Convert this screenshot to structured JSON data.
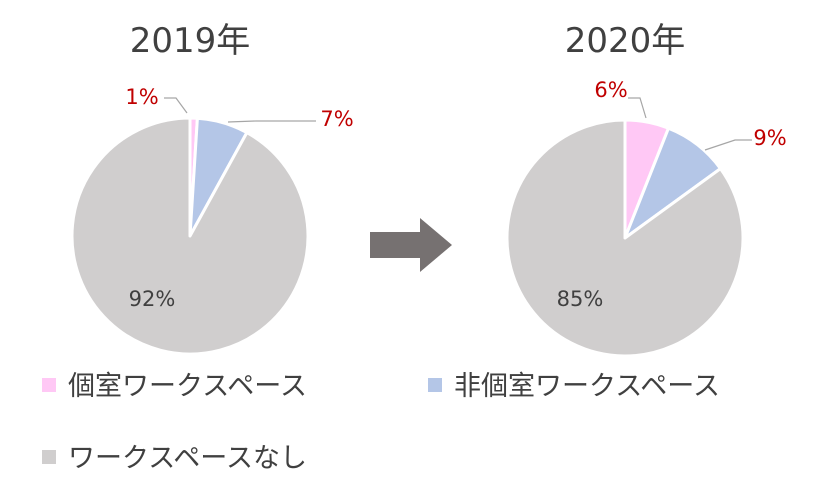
{
  "colors": {
    "private": "#ffc8f5",
    "non_private": "#b4c6e7",
    "none": "#d0cece",
    "label_red": "#c00000",
    "label_dark": "#404040",
    "arrow": "#767171"
  },
  "legend": {
    "items": [
      {
        "label": "個室ワークスペース",
        "color": "#ffc8f5"
      },
      {
        "label": "非個室ワークスペース",
        "color": "#b4c6e7"
      },
      {
        "label": "ワークスペースなし",
        "color": "#d0cece"
      }
    ]
  },
  "chart_data": [
    {
      "type": "pie",
      "title": "2019年",
      "categories": [
        "個室ワークスペース",
        "非個室ワークスペース",
        "ワークスペースなし"
      ],
      "values": [
        1,
        7,
        92
      ],
      "labels": [
        "1%",
        "7%",
        "92%"
      ]
    },
    {
      "type": "pie",
      "title": "2020年",
      "categories": [
        "個室ワークスペース",
        "非個室ワークスペース",
        "ワークスペースなし"
      ],
      "values": [
        6,
        9,
        85
      ],
      "labels": [
        "6%",
        "9%",
        "85%"
      ]
    }
  ]
}
